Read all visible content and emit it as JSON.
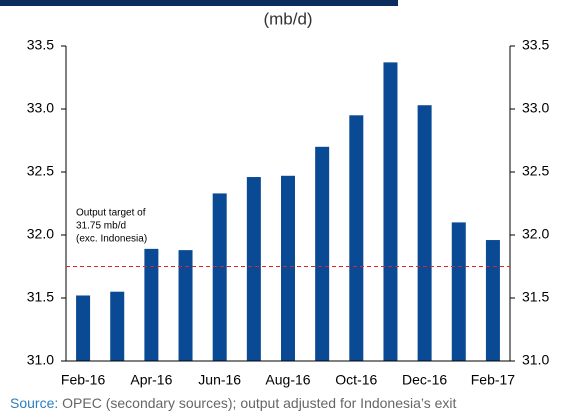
{
  "chart_data": {
    "type": "bar",
    "subtitle": "(mb/d)",
    "categories": [
      "Feb-16",
      null,
      "Apr-16",
      null,
      "Jun-16",
      null,
      "Aug-16",
      null,
      "Oct-16",
      null,
      "Dec-16",
      null,
      "Feb-17"
    ],
    "values": [
      31.52,
      31.55,
      31.89,
      31.88,
      32.33,
      32.46,
      32.47,
      32.7,
      32.95,
      33.37,
      33.03,
      32.1,
      31.96
    ],
    "color": "#0a4a94",
    "ylim": [
      31.0,
      33.5
    ],
    "yticks": [
      {
        "value": 31.0,
        "label": "31.0"
      },
      31.5,
      {
        "value": 32.0,
        "label": "32.0"
      },
      32.5,
      {
        "value": 33.0,
        "label": "33.0"
      },
      33.5
    ],
    "target": 31.75,
    "target_color": "#d9262b",
    "annotation": [
      "Output target of",
      "31.75 mb/d",
      "(exc. Indonesia)"
    ],
    "source_label": "Source:",
    "source": "OPEC (secondary sources); output adjusted for Indonesia’s exit"
  }
}
